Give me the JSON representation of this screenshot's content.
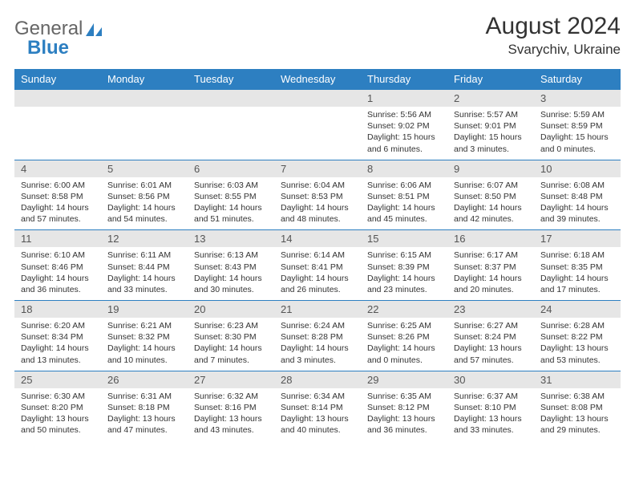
{
  "brand": {
    "part1": "General",
    "part2": "Blue"
  },
  "title": "August 2024",
  "location": "Svarychiv, Ukraine",
  "colors": {
    "header_bg": "#2d7fc1",
    "header_text": "#ffffff",
    "daynum_bg": "#e6e6e6",
    "border": "#2d7fc1",
    "text": "#333333"
  },
  "dows": [
    "Sunday",
    "Monday",
    "Tuesday",
    "Wednesday",
    "Thursday",
    "Friday",
    "Saturday"
  ],
  "weeks": [
    [
      null,
      null,
      null,
      null,
      {
        "n": "1",
        "sr": "5:56 AM",
        "ss": "9:02 PM",
        "dl": "15 hours and 6 minutes."
      },
      {
        "n": "2",
        "sr": "5:57 AM",
        "ss": "9:01 PM",
        "dl": "15 hours and 3 minutes."
      },
      {
        "n": "3",
        "sr": "5:59 AM",
        "ss": "8:59 PM",
        "dl": "15 hours and 0 minutes."
      }
    ],
    [
      {
        "n": "4",
        "sr": "6:00 AM",
        "ss": "8:58 PM",
        "dl": "14 hours and 57 minutes."
      },
      {
        "n": "5",
        "sr": "6:01 AM",
        "ss": "8:56 PM",
        "dl": "14 hours and 54 minutes."
      },
      {
        "n": "6",
        "sr": "6:03 AM",
        "ss": "8:55 PM",
        "dl": "14 hours and 51 minutes."
      },
      {
        "n": "7",
        "sr": "6:04 AM",
        "ss": "8:53 PM",
        "dl": "14 hours and 48 minutes."
      },
      {
        "n": "8",
        "sr": "6:06 AM",
        "ss": "8:51 PM",
        "dl": "14 hours and 45 minutes."
      },
      {
        "n": "9",
        "sr": "6:07 AM",
        "ss": "8:50 PM",
        "dl": "14 hours and 42 minutes."
      },
      {
        "n": "10",
        "sr": "6:08 AM",
        "ss": "8:48 PM",
        "dl": "14 hours and 39 minutes."
      }
    ],
    [
      {
        "n": "11",
        "sr": "6:10 AM",
        "ss": "8:46 PM",
        "dl": "14 hours and 36 minutes."
      },
      {
        "n": "12",
        "sr": "6:11 AM",
        "ss": "8:44 PM",
        "dl": "14 hours and 33 minutes."
      },
      {
        "n": "13",
        "sr": "6:13 AM",
        "ss": "8:43 PM",
        "dl": "14 hours and 30 minutes."
      },
      {
        "n": "14",
        "sr": "6:14 AM",
        "ss": "8:41 PM",
        "dl": "14 hours and 26 minutes."
      },
      {
        "n": "15",
        "sr": "6:15 AM",
        "ss": "8:39 PM",
        "dl": "14 hours and 23 minutes."
      },
      {
        "n": "16",
        "sr": "6:17 AM",
        "ss": "8:37 PM",
        "dl": "14 hours and 20 minutes."
      },
      {
        "n": "17",
        "sr": "6:18 AM",
        "ss": "8:35 PM",
        "dl": "14 hours and 17 minutes."
      }
    ],
    [
      {
        "n": "18",
        "sr": "6:20 AM",
        "ss": "8:34 PM",
        "dl": "14 hours and 13 minutes."
      },
      {
        "n": "19",
        "sr": "6:21 AM",
        "ss": "8:32 PM",
        "dl": "14 hours and 10 minutes."
      },
      {
        "n": "20",
        "sr": "6:23 AM",
        "ss": "8:30 PM",
        "dl": "14 hours and 7 minutes."
      },
      {
        "n": "21",
        "sr": "6:24 AM",
        "ss": "8:28 PM",
        "dl": "14 hours and 3 minutes."
      },
      {
        "n": "22",
        "sr": "6:25 AM",
        "ss": "8:26 PM",
        "dl": "14 hours and 0 minutes."
      },
      {
        "n": "23",
        "sr": "6:27 AM",
        "ss": "8:24 PM",
        "dl": "13 hours and 57 minutes."
      },
      {
        "n": "24",
        "sr": "6:28 AM",
        "ss": "8:22 PM",
        "dl": "13 hours and 53 minutes."
      }
    ],
    [
      {
        "n": "25",
        "sr": "6:30 AM",
        "ss": "8:20 PM",
        "dl": "13 hours and 50 minutes."
      },
      {
        "n": "26",
        "sr": "6:31 AM",
        "ss": "8:18 PM",
        "dl": "13 hours and 47 minutes."
      },
      {
        "n": "27",
        "sr": "6:32 AM",
        "ss": "8:16 PM",
        "dl": "13 hours and 43 minutes."
      },
      {
        "n": "28",
        "sr": "6:34 AM",
        "ss": "8:14 PM",
        "dl": "13 hours and 40 minutes."
      },
      {
        "n": "29",
        "sr": "6:35 AM",
        "ss": "8:12 PM",
        "dl": "13 hours and 36 minutes."
      },
      {
        "n": "30",
        "sr": "6:37 AM",
        "ss": "8:10 PM",
        "dl": "13 hours and 33 minutes."
      },
      {
        "n": "31",
        "sr": "6:38 AM",
        "ss": "8:08 PM",
        "dl": "13 hours and 29 minutes."
      }
    ]
  ],
  "labels": {
    "sunrise": "Sunrise:",
    "sunset": "Sunset:",
    "daylight": "Daylight:"
  }
}
